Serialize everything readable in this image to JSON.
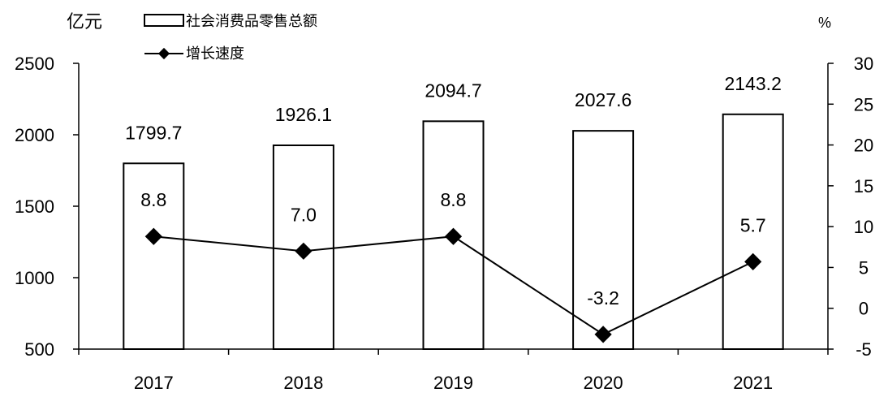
{
  "chart_data": {
    "type": "bar",
    "categories": [
      "2017",
      "2018",
      "2019",
      "2020",
      "2021"
    ],
    "series": [
      {
        "name": "社会消费品零售总额",
        "type": "bar",
        "axis": "left",
        "values": [
          1799.7,
          1926.1,
          2094.7,
          2027.6,
          2143.2
        ]
      },
      {
        "name": "增长速度",
        "type": "line",
        "axis": "right",
        "values": [
          8.8,
          7.0,
          8.8,
          -3.2,
          5.7
        ]
      }
    ],
    "bar_labels": [
      "1799.7",
      "1926.1",
      "2094.7",
      "2027.6",
      "2143.2"
    ],
    "line_labels": [
      "8.8",
      "7.0",
      "8.8",
      "-3.2",
      "5.7"
    ],
    "y_left": {
      "unit": "亿元",
      "min": 500,
      "max": 2500,
      "ticks": [
        500,
        1000,
        1500,
        2000,
        2500
      ]
    },
    "y_right": {
      "unit": "%",
      "min": -5,
      "max": 30,
      "ticks": [
        -5,
        0,
        5,
        10,
        15,
        20,
        25,
        30
      ]
    },
    "legend": {
      "placement": "top-left"
    },
    "grid": false,
    "colors": {
      "bar_fill": "#ffffff",
      "bar_stroke": "#000000",
      "line": "#000000",
      "marker": "#000000"
    }
  }
}
